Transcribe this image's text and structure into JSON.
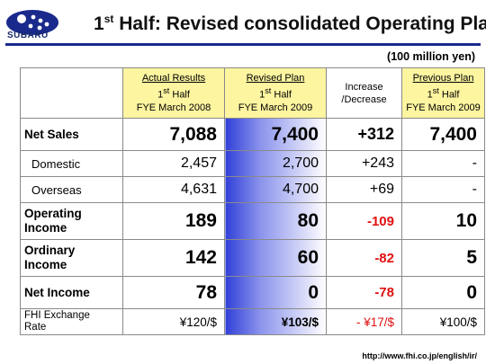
{
  "header": {
    "brand": "SUBARU",
    "title_pre": "1",
    "title_sup": "st",
    "title_post": " Half: Revised consolidated Operating Plan",
    "unit": "(100 million yen)"
  },
  "columns": [
    {
      "l1": "Actual Results",
      "l2a": "1",
      "l2sup": "st",
      "l2b": " Half",
      "l3": "FYE March 2008"
    },
    {
      "l1": "Revised Plan",
      "l2a": "1",
      "l2sup": "st",
      "l2b": " Half",
      "l3": "FYE March 2009"
    },
    {
      "l1": "Increase",
      "l2a": "/Decrease",
      "l2sup": "",
      "l2b": "",
      "l3": ""
    },
    {
      "l1": "Previous Plan",
      "l2a": "1",
      "l2sup": "st",
      "l2b": " Half",
      "l3": "FYE March 2009"
    }
  ],
  "rows": [
    {
      "label": "Net Sales",
      "values": [
        "7,088",
        "7,400",
        "+312",
        "7,400"
      ]
    },
    {
      "label": "Domestic",
      "values": [
        "2,457",
        "2,700",
        "+243",
        "-"
      ]
    },
    {
      "label": "Overseas",
      "values": [
        "4,631",
        "4,700",
        "+69",
        "-"
      ]
    },
    {
      "label1": "Operating",
      "label2": "Income",
      "values": [
        "189",
        "80",
        "-109",
        "10"
      ]
    },
    {
      "label1": "Ordinary",
      "label2": "Income",
      "values": [
        "142",
        "60",
        "-82",
        "5"
      ]
    },
    {
      "label": "Net Income",
      "values": [
        "78",
        "0",
        "-78",
        "0"
      ]
    },
    {
      "label1": "FHI Exchange",
      "label2": "Rate",
      "values": [
        "¥120/$",
        "¥103/$",
        "- ¥17/$",
        "¥100/$"
      ]
    }
  ],
  "footer": {
    "url": "http://www.fhi.co.jp/english/ir/"
  },
  "colors": {
    "accent": "#1a2a8c",
    "header_fill": "#fdf5a0",
    "negative": "#e01010"
  }
}
